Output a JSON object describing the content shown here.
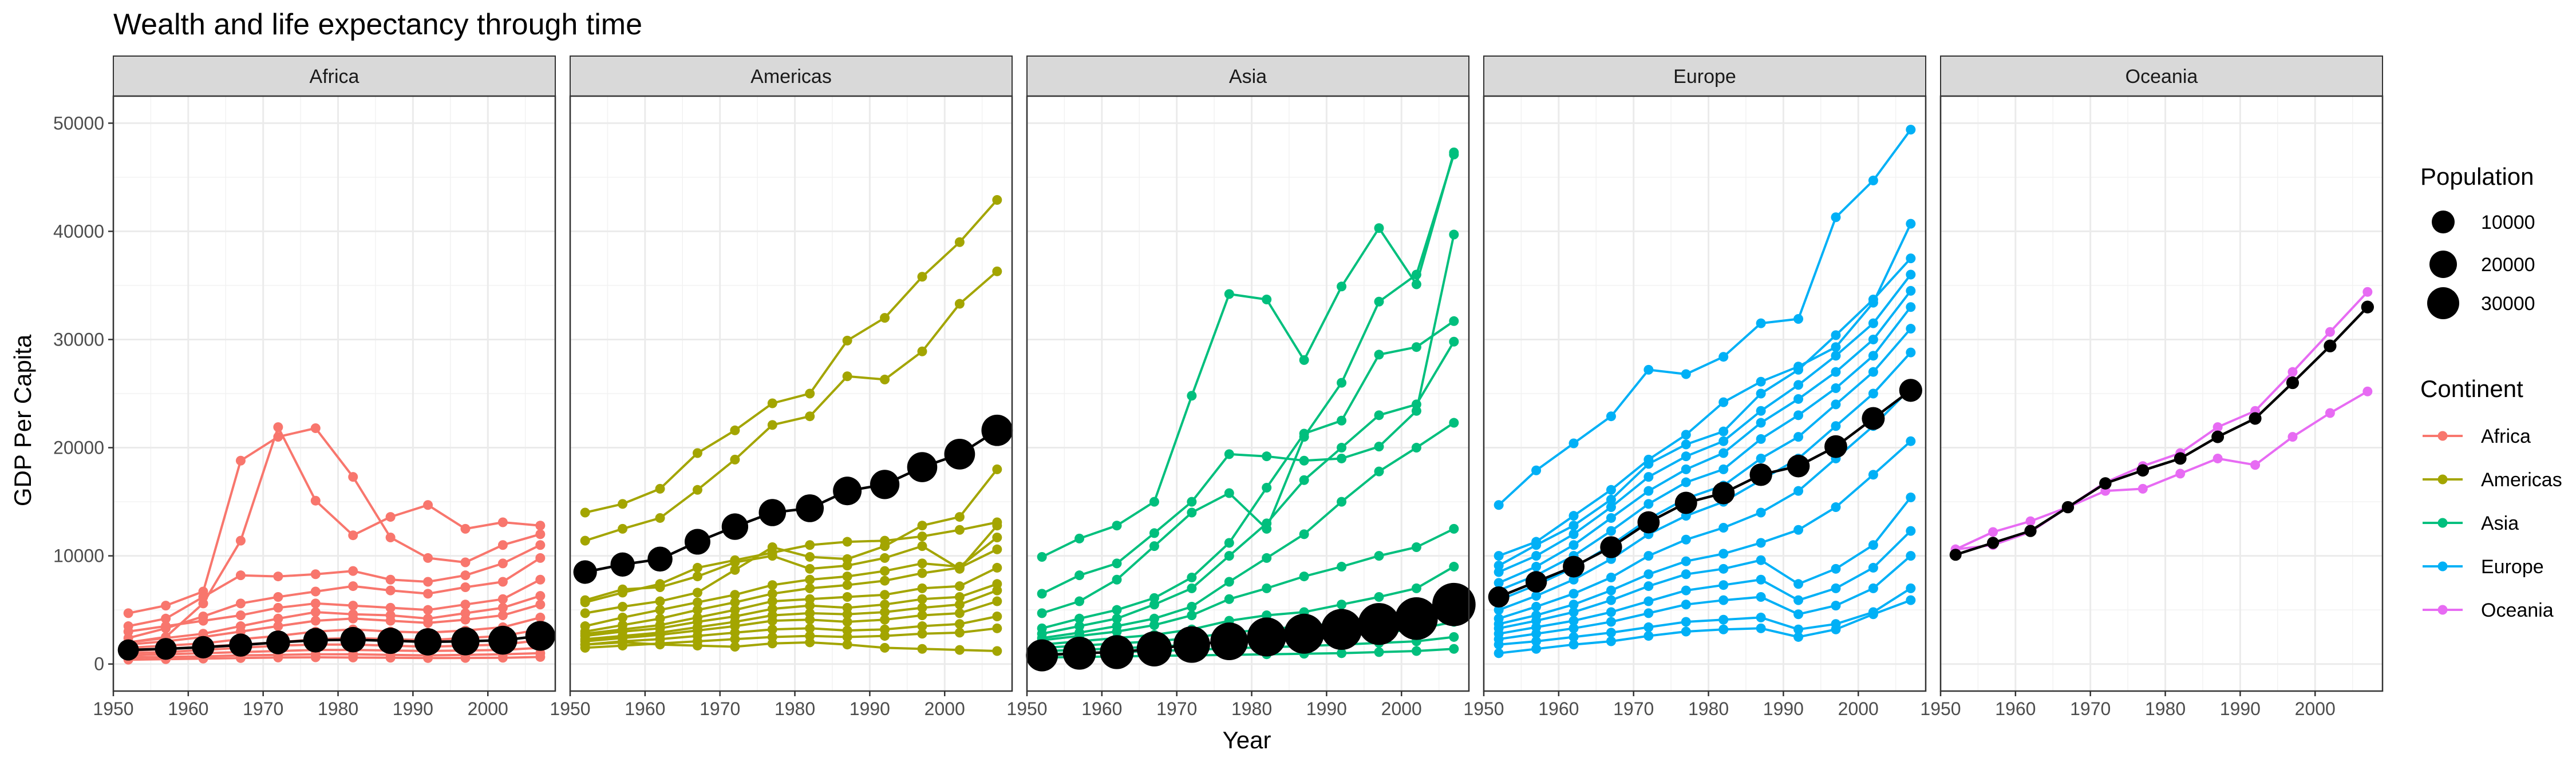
{
  "chart_data": {
    "type": "line",
    "title": "Wealth and life expectancy through time",
    "xlabel": "Year",
    "ylabel": "GDP Per Capita",
    "facets": [
      "Africa",
      "Americas",
      "Asia",
      "Europe",
      "Oceania"
    ],
    "xlim": [
      1950,
      2009
    ],
    "ylim": [
      -2500,
      52500
    ],
    "x_ticks": [
      1950,
      1960,
      1970,
      1980,
      1990,
      2000
    ],
    "y_ticks": [
      0,
      10000,
      20000,
      30000,
      40000,
      50000
    ],
    "years": [
      1952,
      1957,
      1962,
      1967,
      1972,
      1977,
      1982,
      1987,
      1992,
      1997,
      2002,
      2007
    ],
    "colors": {
      "Africa": "#F8766D",
      "Americas": "#A3A500",
      "Asia": "#00BF7D",
      "Europe": "#00B0F6",
      "Oceania": "#E76BF3",
      "mean": "#000000",
      "strip_bg": "#D9D9D9",
      "panel_border": "#333333",
      "grid": "#EBEBEB"
    },
    "legend": {
      "size_title": "Population",
      "size_entries": [
        10000,
        20000,
        30000
      ],
      "color_title": "Continent",
      "color_entries": [
        "Africa",
        "Americas",
        "Asia",
        "Europe",
        "Oceania"
      ]
    },
    "mean_series": [
      {
        "continent": "Africa",
        "values": [
          1300,
          1400,
          1550,
          1750,
          2000,
          2200,
          2250,
          2150,
          2050,
          2100,
          2200,
          2600
        ],
        "pop": [
          4000,
          4500,
          5000,
          5600,
          6200,
          7000,
          7800,
          8700,
          9800,
          10800,
          11800,
          13000
        ]
      },
      {
        "continent": "Americas",
        "values": [
          8500,
          9200,
          9700,
          11300,
          12700,
          14000,
          14400,
          16000,
          16600,
          18200,
          19400,
          21600
        ],
        "pop": [
          6000,
          6600,
          7300,
          8100,
          8900,
          9700,
          10500,
          11400,
          12300,
          13300,
          14200,
          15000
        ]
      },
      {
        "continent": "Asia",
        "values": [
          800,
          1000,
          1100,
          1400,
          1800,
          2100,
          2500,
          2800,
          3200,
          3700,
          4200,
          5500
        ],
        "pop": [
          16000,
          17500,
          19000,
          21000,
          23500,
          25500,
          28000,
          30000,
          32000,
          34000,
          35500,
          37000
        ]
      },
      {
        "continent": "Europe",
        "values": [
          6200,
          7600,
          9000,
          10800,
          13100,
          14900,
          15800,
          17500,
          18300,
          20100,
          22700,
          25300
        ],
        "pop": [
          4000,
          4200,
          4400,
          4600,
          4800,
          4900,
          5000,
          5100,
          5200,
          5300,
          5400,
          5500
        ]
      },
      {
        "continent": "Oceania",
        "values": [
          10100,
          11200,
          12300,
          14500,
          16700,
          17900,
          19000,
          21000,
          22700,
          26000,
          29400,
          33000
        ],
        "pop": [
          100,
          110,
          120,
          130,
          140,
          150,
          160,
          170,
          180,
          190,
          200,
          210
        ]
      }
    ],
    "series": [
      {
        "continent": "Africa",
        "values": [
          4700,
          5400,
          6700,
          18800,
          21000,
          21800,
          17300,
          11700,
          9800,
          9400,
          11000,
          12000
        ]
      },
      {
        "continent": "Africa",
        "values": [
          2000,
          2500,
          5600,
          11400,
          21900,
          15100,
          11900,
          13600,
          14700,
          12500,
          13100,
          12800
        ]
      },
      {
        "continent": "Africa",
        "values": [
          3500,
          4200,
          6200,
          8200,
          8100,
          8300,
          8600,
          7800,
          7600,
          8200,
          9300,
          11000
        ]
      },
      {
        "continent": "Africa",
        "values": [
          2400,
          3300,
          4400,
          5600,
          6200,
          6700,
          7200,
          6800,
          6500,
          7100,
          7600,
          9800
        ]
      },
      {
        "continent": "Africa",
        "values": [
          3000,
          3500,
          4000,
          4500,
          5200,
          5600,
          5400,
          5200,
          5000,
          5500,
          6000,
          7800
        ]
      },
      {
        "continent": "Africa",
        "values": [
          2000,
          2400,
          2800,
          3500,
          4200,
          4800,
          4600,
          4500,
          4200,
          4700,
          5200,
          6300
        ]
      },
      {
        "continent": "Africa",
        "values": [
          1800,
          2100,
          2500,
          3000,
          3500,
          4000,
          4200,
          4000,
          3800,
          4100,
          4500,
          5500
        ]
      },
      {
        "continent": "Africa",
        "values": [
          1500,
          1700,
          1900,
          2300,
          2600,
          3000,
          3200,
          3000,
          2900,
          3100,
          3400,
          4300
        ]
      },
      {
        "continent": "Africa",
        "values": [
          1200,
          1400,
          1600,
          1800,
          2000,
          2300,
          2400,
          2300,
          2200,
          2400,
          2600,
          3200
        ]
      },
      {
        "continent": "Africa",
        "values": [
          1000,
          1100,
          1300,
          1500,
          1700,
          1800,
          1800,
          1700,
          1600,
          1700,
          1800,
          2200
        ]
      },
      {
        "continent": "Africa",
        "values": [
          800,
          900,
          1000,
          1100,
          1200,
          1300,
          1300,
          1250,
          1200,
          1250,
          1300,
          1500
        ]
      },
      {
        "continent": "Africa",
        "values": [
          600,
          650,
          700,
          800,
          850,
          900,
          900,
          850,
          800,
          850,
          900,
          1000
        ]
      },
      {
        "continent": "Africa",
        "values": [
          400,
          450,
          500,
          550,
          600,
          620,
          600,
          580,
          550,
          560,
          580,
          650
        ]
      },
      {
        "continent": "Americas",
        "values": [
          14000,
          14800,
          16200,
          19500,
          21600,
          24100,
          25000,
          29900,
          32000,
          35800,
          39000,
          42900
        ]
      },
      {
        "continent": "Americas",
        "values": [
          11400,
          12500,
          13500,
          16100,
          18900,
          22100,
          22900,
          26600,
          26300,
          28900,
          33300,
          36300
        ]
      },
      {
        "continent": "Americas",
        "values": [
          5900,
          6900,
          7100,
          8100,
          9400,
          10000,
          8800,
          9100,
          9800,
          10900,
          8800,
          12800
        ]
      },
      {
        "continent": "Americas",
        "values": [
          5700,
          6600,
          7400,
          8900,
          9600,
          10300,
          11000,
          11300,
          11400,
          11800,
          12400,
          13100
        ]
      },
      {
        "continent": "Americas",
        "values": [
          4700,
          5300,
          5800,
          6600,
          8700,
          10800,
          9900,
          9700,
          10900,
          12800,
          13600,
          18000
        ]
      },
      {
        "continent": "Americas",
        "values": [
          3500,
          4300,
          5000,
          5700,
          6400,
          7300,
          7800,
          8100,
          8600,
          9300,
          9000,
          11700
        ]
      },
      {
        "continent": "Americas",
        "values": [
          3000,
          3600,
          4200,
          5000,
          5700,
          6500,
          7000,
          7300,
          7700,
          8400,
          8900,
          10600
        ]
      },
      {
        "continent": "Americas",
        "values": [
          2800,
          3200,
          3600,
          4300,
          5000,
          5800,
          6000,
          6200,
          6400,
          7000,
          7200,
          8900
        ]
      },
      {
        "continent": "Americas",
        "values": [
          2600,
          3000,
          3300,
          3900,
          4400,
          5100,
          5400,
          5200,
          5500,
          6000,
          6200,
          7400
        ]
      },
      {
        "continent": "Americas",
        "values": [
          2300,
          2600,
          2900,
          3400,
          3900,
          4500,
          4700,
          4600,
          4800,
          5200,
          5500,
          6800
        ]
      },
      {
        "continent": "Americas",
        "values": [
          2100,
          2400,
          2700,
          3100,
          3500,
          4000,
          4100,
          3900,
          4100,
          4500,
          4700,
          5800
        ]
      },
      {
        "continent": "Americas",
        "values": [
          1800,
          2100,
          2300,
          2600,
          2900,
          3200,
          3300,
          3100,
          3200,
          3500,
          3700,
          4400
        ]
      },
      {
        "continent": "Americas",
        "values": [
          1500,
          1700,
          1900,
          2100,
          2300,
          2500,
          2600,
          2500,
          2600,
          2800,
          2900,
          3300
        ]
      },
      {
        "continent": "Americas",
        "values": [
          1800,
          2000,
          1800,
          1700,
          1600,
          1900,
          2000,
          1800,
          1500,
          1400,
          1300,
          1200
        ]
      },
      {
        "continent": "Asia",
        "values": [
          9900,
          11600,
          12800,
          15000,
          24800,
          34200,
          33700,
          28100,
          34900,
          40300,
          35100,
          47300
        ]
      },
      {
        "continent": "Asia",
        "values": [
          6500,
          8200,
          9300,
          12100,
          15000,
          19400,
          19200,
          18800,
          19000,
          20100,
          23400,
          39700
        ]
      },
      {
        "continent": "Asia",
        "values": [
          4700,
          5800,
          7800,
          10900,
          14000,
          15800,
          12500,
          21000,
          26000,
          33500,
          36000,
          47100
        ]
      },
      {
        "continent": "Asia",
        "values": [
          3300,
          4200,
          5000,
          6100,
          8000,
          11200,
          16300,
          21300,
          22500,
          28600,
          29300,
          31700
        ]
      },
      {
        "continent": "Asia",
        "values": [
          2800,
          3500,
          4200,
          5500,
          7000,
          10000,
          13000,
          17000,
          20000,
          23000,
          24000,
          29800
        ]
      },
      {
        "continent": "Asia",
        "values": [
          2400,
          2900,
          3500,
          4200,
          5300,
          7600,
          9800,
          12000,
          15000,
          17800,
          20000,
          22300
        ]
      },
      {
        "continent": "Asia",
        "values": [
          2200,
          2600,
          3000,
          3600,
          4500,
          6000,
          7000,
          8100,
          9000,
          10000,
          10800,
          12500
        ]
      },
      {
        "continent": "Asia",
        "values": [
          1800,
          2100,
          2400,
          2700,
          3200,
          4000,
          4500,
          4800,
          5500,
          6200,
          7000,
          9000
        ]
      },
      {
        "continent": "Asia",
        "values": [
          1500,
          1700,
          1900,
          2100,
          2400,
          2900,
          3200,
          3500,
          3800,
          4200,
          4700,
          5700
        ]
      },
      {
        "continent": "Asia",
        "values": [
          1200,
          1300,
          1450,
          1600,
          1800,
          2100,
          2300,
          2500,
          2700,
          2900,
          3200,
          3900
        ]
      },
      {
        "continent": "Asia",
        "values": [
          900,
          1000,
          1100,
          1200,
          1300,
          1450,
          1550,
          1650,
          1800,
          1950,
          2100,
          2500
        ]
      },
      {
        "continent": "Asia",
        "values": [
          600,
          650,
          700,
          750,
          800,
          850,
          900,
          950,
          1000,
          1100,
          1200,
          1400
        ]
      },
      {
        "continent": "Europe",
        "values": [
          14700,
          17900,
          20400,
          22900,
          27200,
          26800,
          28400,
          31500,
          31900,
          41300,
          44700,
          49400
        ]
      },
      {
        "continent": "Europe",
        "values": [
          10000,
          11300,
          13700,
          16100,
          18900,
          21200,
          24200,
          26100,
          27500,
          29300,
          33400,
          40700
        ]
      },
      {
        "continent": "Europe",
        "values": [
          9100,
          11000,
          12800,
          15200,
          18500,
          20300,
          21500,
          25000,
          27200,
          30400,
          33700,
          37500
        ]
      },
      {
        "continent": "Europe",
        "values": [
          8500,
          10000,
          12000,
          14500,
          17300,
          19200,
          20600,
          23400,
          25800,
          28500,
          31500,
          36000
        ]
      },
      {
        "continent": "Europe",
        "values": [
          7500,
          9000,
          11000,
          13500,
          16000,
          18000,
          19500,
          22300,
          24500,
          27000,
          30000,
          34500
        ]
      },
      {
        "continent": "Europe",
        "values": [
          6800,
          8200,
          10000,
          12300,
          14800,
          16800,
          18000,
          20800,
          23000,
          25500,
          28500,
          33000
        ]
      },
      {
        "continent": "Europe",
        "values": [
          5900,
          7300,
          8900,
          11000,
          13400,
          15300,
          16500,
          19000,
          21000,
          24000,
          27000,
          31000
        ]
      },
      {
        "continent": "Europe",
        "values": [
          5000,
          6300,
          7800,
          9700,
          12000,
          13700,
          15000,
          17000,
          19000,
          22000,
          25000,
          28800
        ]
      },
      {
        "continent": "Europe",
        "values": [
          4200,
          5300,
          6500,
          8000,
          10000,
          11500,
          12600,
          14000,
          16000,
          19000,
          22000,
          25500
        ]
      },
      {
        "continent": "Europe",
        "values": [
          3700,
          4500,
          5500,
          6800,
          8300,
          9500,
          10200,
          11200,
          12400,
          14500,
          17500,
          20600
        ]
      },
      {
        "continent": "Europe",
        "values": [
          3300,
          4000,
          4800,
          5900,
          7200,
          8300,
          8800,
          9600,
          7400,
          8800,
          11000,
          15400
        ]
      },
      {
        "continent": "Europe",
        "values": [
          2800,
          3400,
          4000,
          4800,
          5800,
          6800,
          7300,
          7800,
          5900,
          7000,
          8900,
          12300
        ]
      },
      {
        "continent": "Europe",
        "values": [
          2300,
          2800,
          3300,
          3900,
          4700,
          5500,
          5900,
          6200,
          4600,
          5400,
          7000,
          10000
        ]
      },
      {
        "continent": "Europe",
        "values": [
          1800,
          2100,
          2500,
          2900,
          3400,
          3900,
          4100,
          4300,
          3200,
          3700,
          4800,
          7000
        ]
      },
      {
        "continent": "Europe",
        "values": [
          1000,
          1400,
          1800,
          2100,
          2600,
          3000,
          3200,
          3300,
          2500,
          3200,
          4600,
          5900
        ]
      },
      {
        "continent": "Oceania",
        "values": [
          10600,
          12200,
          13200,
          14500,
          16800,
          18300,
          19500,
          21900,
          23400,
          27000,
          30700,
          34400
        ]
      },
      {
        "continent": "Oceania",
        "values": [
          10600,
          11000,
          12200,
          14500,
          16000,
          16200,
          17600,
          19000,
          18400,
          21000,
          23200,
          25200
        ]
      }
    ]
  }
}
